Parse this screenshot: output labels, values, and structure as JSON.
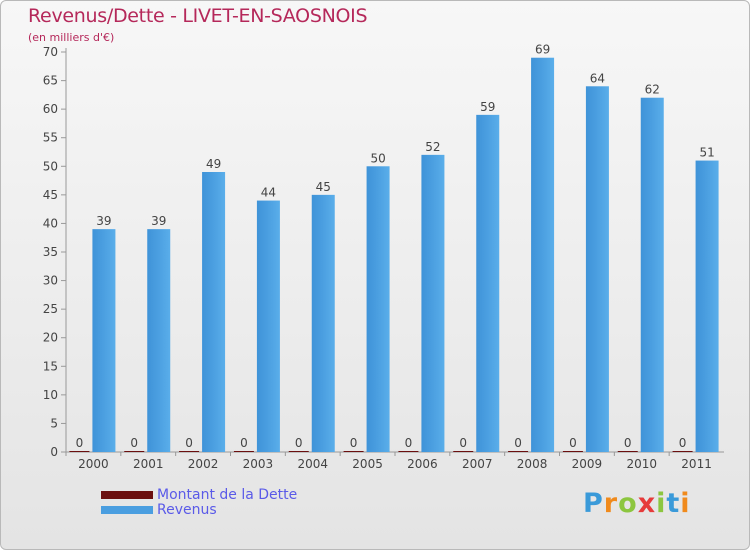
{
  "header": {
    "title": "Revenus/Dette - LIVET-EN-SAOSNOIS",
    "subtitle": "(en milliers d'€)"
  },
  "legend": {
    "debt_label": "Montant de la Dette",
    "revenue_label": "Revenus"
  },
  "brand": {
    "letters": [
      "P",
      "r",
      "o",
      "x",
      "i",
      "t",
      "i"
    ],
    "colors": [
      "#3a9ad9",
      "#f08a1c",
      "#8cc63f",
      "#e63b3b",
      "#8cc63f",
      "#3a9ad9",
      "#f08a1c"
    ]
  },
  "colors": {
    "revenue": "#4a9ee0",
    "debt": "#6b0f0f",
    "title": "#b5285a"
  },
  "chart_data": {
    "type": "bar",
    "title": "Revenus/Dette - LIVET-EN-SAOSNOIS",
    "ylabel": "(en milliers d'€)",
    "categories": [
      "2000",
      "2001",
      "2002",
      "2003",
      "2004",
      "2005",
      "2006",
      "2007",
      "2008",
      "2009",
      "2010",
      "2011"
    ],
    "ylim": [
      0,
      70
    ],
    "yticks": [
      0,
      5,
      10,
      15,
      20,
      25,
      30,
      35,
      40,
      45,
      50,
      55,
      60,
      65,
      70
    ],
    "grid": false,
    "legend_position": "bottom-left",
    "series": [
      {
        "name": "Montant de la Dette",
        "values": [
          0,
          0,
          0,
          0,
          0,
          0,
          0,
          0,
          0,
          0,
          0,
          0
        ]
      },
      {
        "name": "Revenus",
        "values": [
          39,
          39,
          49,
          44,
          45,
          50,
          52,
          59,
          69,
          64,
          62,
          51
        ]
      }
    ]
  }
}
